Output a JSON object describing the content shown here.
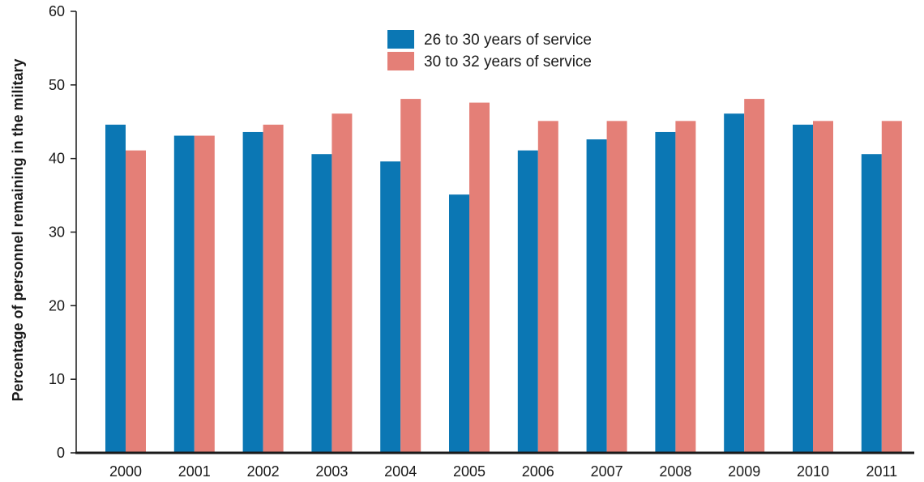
{
  "chart_data": {
    "type": "bar",
    "categories": [
      "2000",
      "2001",
      "2002",
      "2003",
      "2004",
      "2005",
      "2006",
      "2007",
      "2008",
      "2009",
      "2010",
      "2011"
    ],
    "series": [
      {
        "name": "26 to 30 years of service",
        "color": "#0b77b4",
        "values": [
          44.6,
          43.1,
          43.6,
          40.6,
          39.6,
          35.1,
          41.1,
          42.6,
          43.6,
          46.1,
          44.6,
          40.6
        ]
      },
      {
        "name": "30 to 32 years of service",
        "color": "#e47f77",
        "values": [
          41.1,
          43.1,
          44.6,
          46.1,
          48.1,
          47.6,
          45.1,
          45.1,
          45.1,
          48.1,
          45.1,
          45.1
        ]
      }
    ],
    "ylabel": "Percentage of personnel remaining in the military",
    "ylim": [
      0,
      60
    ],
    "yticks": [
      0,
      10,
      20,
      30,
      40,
      50,
      60
    ],
    "grid": false,
    "legend_position": "top-center"
  }
}
